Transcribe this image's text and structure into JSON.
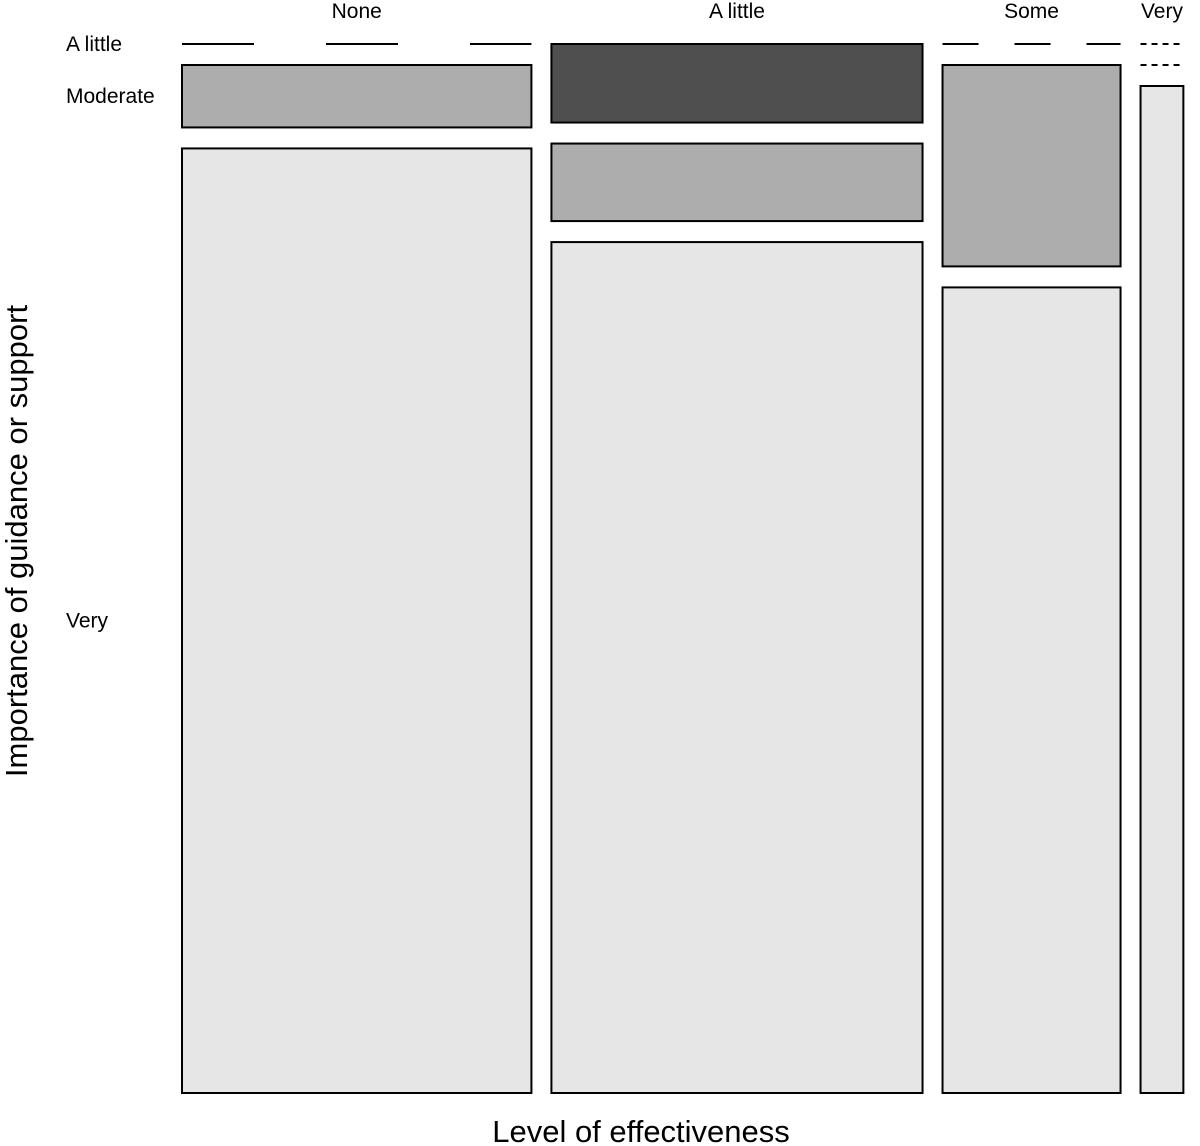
{
  "chart_data": {
    "type": "mosaic",
    "xlabel": "Level of effectiveness",
    "ylabel": "Importance of guidance or support",
    "columns": [
      {
        "label": "None",
        "share": 0.3655
      },
      {
        "label": "A little",
        "share": 0.3882
      },
      {
        "label": "Some",
        "share": 0.1862
      },
      {
        "label": "Very",
        "share": 0.0448
      }
    ],
    "rows": [
      {
        "label": "A little",
        "color": "#4f4f4f"
      },
      {
        "label": "Moderate",
        "color": "#adadad"
      },
      {
        "label": "Very",
        "color": "#e6e6e6"
      }
    ],
    "row_labels_shown": [
      "A little",
      "Moderate",
      "Very"
    ],
    "proportions": {
      "None": [
        0.0,
        0.062,
        0.938
      ],
      "A little": [
        0.078,
        0.077,
        0.845
      ],
      "Some": [
        0.0,
        0.2,
        0.8
      ],
      "Very": [
        0.0,
        0.0,
        1.0
      ]
    }
  }
}
